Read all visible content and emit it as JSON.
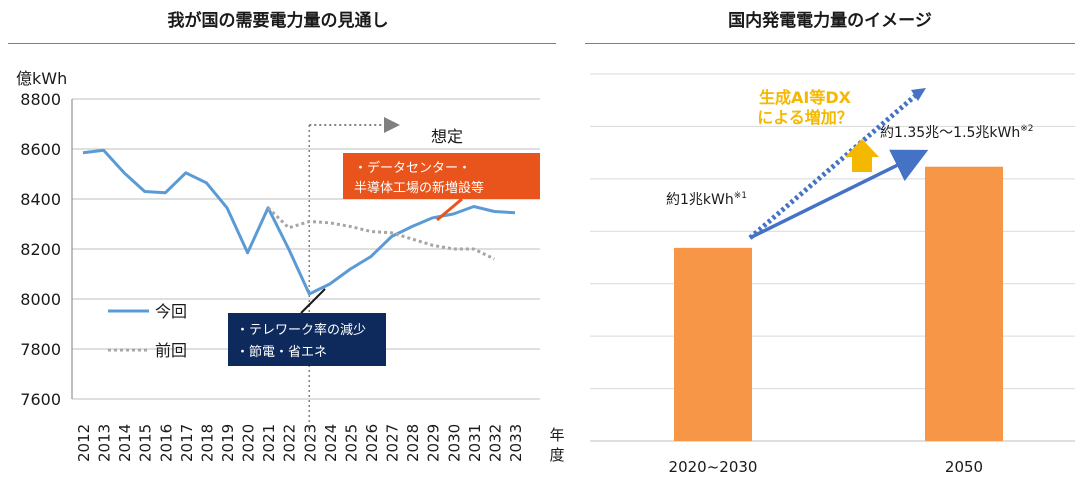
{
  "left_panel": {
    "title": "我が国の需要電力量の見通し"
  },
  "right_panel": {
    "title": "国内発電電力量のイメージ"
  },
  "chart_data": [
    {
      "type": "line",
      "title": "我が国の需要電力量の見通し",
      "ylabel": "億kWh",
      "xlabel": "年度",
      "ylim": [
        7600,
        8800
      ],
      "yticks": [
        "7600",
        "7800",
        "8000",
        "8200",
        "8400",
        "8600",
        "8800"
      ],
      "x": [
        "2012",
        "2013",
        "2014",
        "2015",
        "2016",
        "2017",
        "2018",
        "2019",
        "2020",
        "2021",
        "2022",
        "2023",
        "2024",
        "2025",
        "2026",
        "2027",
        "2028",
        "2029",
        "2030",
        "2031",
        "2032",
        "2033"
      ],
      "grid": true,
      "legend": "left",
      "series": [
        {
          "name": "今回",
          "style": "solid",
          "color": "#5b9bd5",
          "values": [
            8585,
            8595,
            8505,
            8430,
            8425,
            8505,
            8465,
            8365,
            8185,
            8365,
            8200,
            8020,
            8060,
            8120,
            8170,
            8250,
            8290,
            8325,
            8340,
            8370,
            8350,
            8345
          ]
        },
        {
          "name": "前回",
          "style": "dotted",
          "color": "#a6a6a6",
          "values": [
            null,
            null,
            null,
            null,
            null,
            null,
            null,
            null,
            null,
            8365,
            8285,
            8310,
            8305,
            8290,
            8270,
            8265,
            8240,
            8215,
            8200,
            8200,
            8160,
            null
          ]
        }
      ],
      "annotations": {
        "forecast": "想定",
        "up_box": [
          "・データセンター・",
          "半導体工場の新増設等"
        ],
        "down_box": [
          "・テレワーク率の減少",
          "・節電・省エネ"
        ]
      },
      "colors": {
        "up_box": "#e8541c",
        "down_box": "#0e2a5c"
      }
    },
    {
      "type": "bar",
      "title": "国内発電電力量のイメージ",
      "categories": [
        "2020~2030",
        "2050"
      ],
      "values": [
        1.0,
        1.42
      ],
      "ylim": [
        0,
        1.9
      ],
      "grid": true,
      "data_labels": [
        {
          "text": "約1兆kWh",
          "sup": "※1"
        },
        {
          "text": "約1.35兆～1.5兆kWh",
          "sup": "※2"
        }
      ],
      "callout": [
        "生成AI等DX",
        "による増加？"
      ],
      "colors": {
        "bar": "#f79646",
        "arrow": "#4472c4",
        "callout": "#f5b800"
      }
    }
  ]
}
